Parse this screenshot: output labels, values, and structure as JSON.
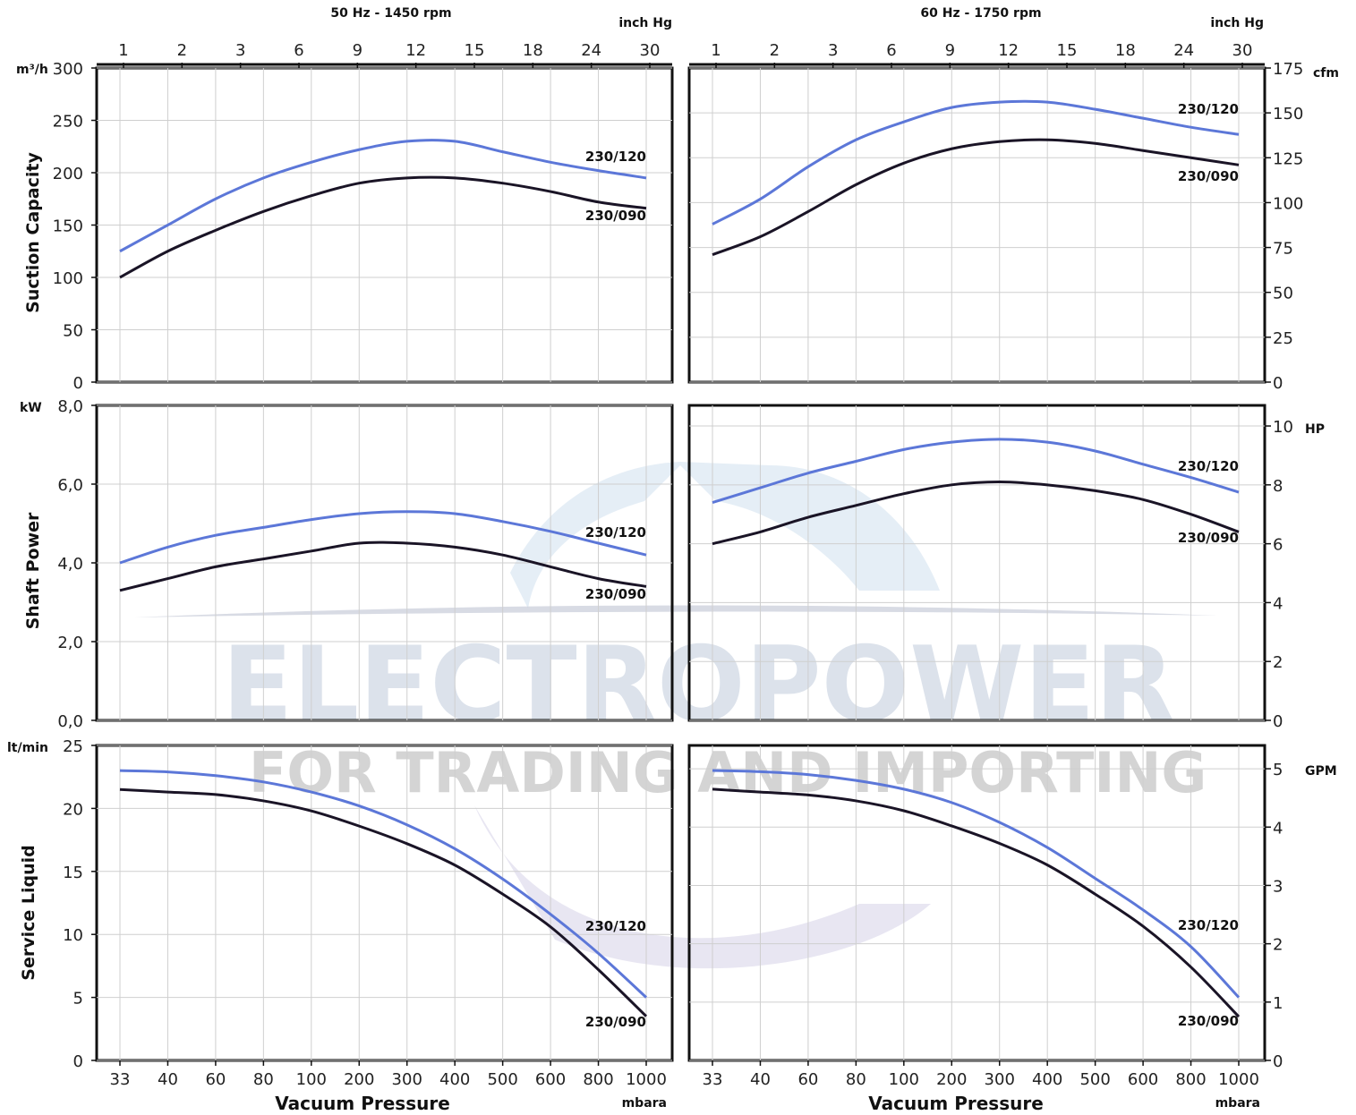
{
  "watermark": {
    "line1": "ELECTROPOWER",
    "line2": "FOR TRADING AND IMPORTING",
    "color_light": "#cfd8e4",
    "color_gray": "#b8b8b8"
  },
  "headers": {
    "left_title": "50 Hz - 1450 rpm",
    "right_title": "60 Hz - 1750 rpm",
    "top_unit_left": "inch Hg",
    "top_unit_right": "inch Hg"
  },
  "colors": {
    "series_230_120": "#5c77d8",
    "series_230_090": "#1a1426"
  },
  "top_axis_ticks": [
    "1",
    "2",
    "3",
    "6",
    "9",
    "12",
    "15",
    "18",
    "24",
    "30"
  ],
  "bottom_axis": {
    "ticks": [
      "33",
      "40",
      "60",
      "80",
      "100",
      "200",
      "300",
      "400",
      "500",
      "600",
      "800",
      "1000"
    ],
    "label": "Vacuum Pressure",
    "unit": "mbara"
  },
  "chart_data": [
    {
      "type": "line",
      "panel": "suction-50hz",
      "title": "50 Hz - 1450 rpm",
      "ylabel": "Suction Capacity",
      "yunit": "m³/h",
      "ylim": [
        0,
        300
      ],
      "yticks": [
        "0",
        "50",
        "100",
        "150",
        "200",
        "250",
        "300"
      ],
      "xlabel": "Vacuum Pressure",
      "x": [
        33,
        40,
        60,
        80,
        100,
        200,
        300,
        400,
        500,
        600,
        800,
        1000
      ],
      "grid": true,
      "series": [
        {
          "name": "230/120",
          "values": [
            125,
            150,
            175,
            195,
            210,
            222,
            230,
            230,
            220,
            210,
            202,
            195
          ]
        },
        {
          "name": "230/090",
          "values": [
            100,
            125,
            145,
            163,
            178,
            190,
            195,
            195,
            190,
            182,
            172,
            166
          ]
        }
      ]
    },
    {
      "type": "line",
      "panel": "suction-60hz",
      "title": "60 Hz - 1750 rpm",
      "yunit_right": "cfm",
      "ylim_right": [
        0,
        175
      ],
      "yticks_right": [
        "0",
        "25",
        "50",
        "75",
        "100",
        "125",
        "150",
        "175"
      ],
      "x": [
        33,
        40,
        60,
        80,
        100,
        200,
        300,
        400,
        500,
        600,
        800,
        1000
      ],
      "grid": true,
      "series": [
        {
          "name": "230/120",
          "values": [
            88,
            102,
            120,
            135,
            145,
            153,
            156,
            156,
            152,
            147,
            142,
            138
          ]
        },
        {
          "name": "230/090",
          "values": [
            71,
            81,
            95,
            110,
            122,
            130,
            134,
            135,
            133,
            129,
            125,
            121
          ]
        }
      ]
    },
    {
      "type": "line",
      "panel": "power-50hz",
      "ylabel": "Shaft Power",
      "yunit": "kW",
      "ylim": [
        0,
        8
      ],
      "yticks": [
        "0,0",
        "2,0",
        "4,0",
        "6,0",
        "8,0"
      ],
      "x": [
        33,
        40,
        60,
        80,
        100,
        200,
        300,
        400,
        500,
        600,
        800,
        1000
      ],
      "grid": true,
      "series": [
        {
          "name": "230/120",
          "values": [
            4.0,
            4.4,
            4.7,
            4.9,
            5.1,
            5.25,
            5.3,
            5.25,
            5.05,
            4.8,
            4.5,
            4.2
          ]
        },
        {
          "name": "230/090",
          "values": [
            3.3,
            3.6,
            3.9,
            4.1,
            4.3,
            4.5,
            4.5,
            4.4,
            4.2,
            3.9,
            3.6,
            3.4
          ]
        }
      ]
    },
    {
      "type": "line",
      "panel": "power-60hz",
      "yunit_right": "HP",
      "ylim_right": [
        0,
        10.7
      ],
      "yticks_right": [
        "0",
        "2",
        "4",
        "6",
        "8",
        "10"
      ],
      "x": [
        33,
        40,
        60,
        80,
        100,
        200,
        300,
        400,
        500,
        600,
        800,
        1000
      ],
      "grid": true,
      "series": [
        {
          "name": "230/120",
          "values": [
            7.4,
            7.9,
            8.4,
            8.8,
            9.2,
            9.45,
            9.55,
            9.45,
            9.15,
            8.7,
            8.25,
            7.75
          ]
        },
        {
          "name": "230/090",
          "values": [
            6.0,
            6.4,
            6.9,
            7.3,
            7.7,
            8.0,
            8.1,
            8.0,
            7.8,
            7.5,
            7.0,
            6.4
          ]
        }
      ]
    },
    {
      "type": "line",
      "panel": "liquid-50hz",
      "ylabel": "Service Liquid",
      "yunit": "lt/min",
      "ylim": [
        0,
        25
      ],
      "yticks": [
        "0",
        "5",
        "10",
        "15",
        "20",
        "25"
      ],
      "x": [
        33,
        40,
        60,
        80,
        100,
        200,
        300,
        400,
        500,
        600,
        800,
        1000
      ],
      "grid": true,
      "series": [
        {
          "name": "230/120",
          "values": [
            23.0,
            22.9,
            22.6,
            22.1,
            21.3,
            20.2,
            18.7,
            16.8,
            14.4,
            11.6,
            8.5,
            5.0
          ]
        },
        {
          "name": "230/090",
          "values": [
            21.5,
            21.3,
            21.1,
            20.6,
            19.8,
            18.6,
            17.2,
            15.5,
            13.2,
            10.6,
            7.2,
            3.5
          ]
        }
      ]
    },
    {
      "type": "line",
      "panel": "liquid-60hz",
      "yunit_right": "GPM",
      "ylim_right": [
        0,
        5.4
      ],
      "yticks_right": [
        "0",
        "1",
        "2",
        "3",
        "4",
        "5"
      ],
      "x": [
        33,
        40,
        60,
        80,
        100,
        200,
        300,
        400,
        500,
        600,
        800,
        1000
      ],
      "grid": true,
      "series": [
        {
          "name": "230/120",
          "values": [
            4.97,
            4.95,
            4.9,
            4.8,
            4.65,
            4.42,
            4.08,
            3.65,
            3.12,
            2.58,
            1.95,
            1.08
          ]
        },
        {
          "name": "230/090",
          "values": [
            4.65,
            4.6,
            4.55,
            4.45,
            4.28,
            4.02,
            3.72,
            3.35,
            2.85,
            2.3,
            1.6,
            0.75
          ]
        }
      ]
    }
  ]
}
